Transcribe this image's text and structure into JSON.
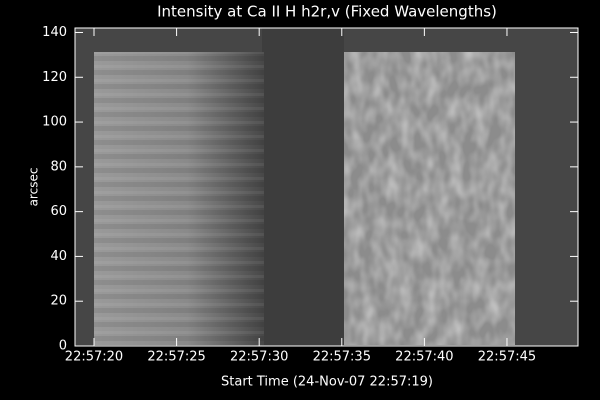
{
  "chart_data": {
    "type": "image",
    "title": "Intensity at Ca II H h2r,v (Fixed Wavelengths)",
    "xlabel": "Start Time (24-Nov-07 22:57:19)",
    "ylabel": "arcsec",
    "xlim": [
      18.85,
      49.3
    ],
    "xticks": [
      {
        "value": 20,
        "label": "22:57:20"
      },
      {
        "value": 25,
        "label": "22:57:25"
      },
      {
        "value": 30,
        "label": "22:57:30"
      },
      {
        "value": 35,
        "label": "22:57:35"
      },
      {
        "value": 40,
        "label": "22:57:40"
      },
      {
        "value": 45,
        "label": "22:57:45"
      }
    ],
    "ylim": [
      0,
      142
    ],
    "yticks": [
      0,
      20,
      40,
      60,
      80,
      100,
      120,
      140
    ]
  }
}
